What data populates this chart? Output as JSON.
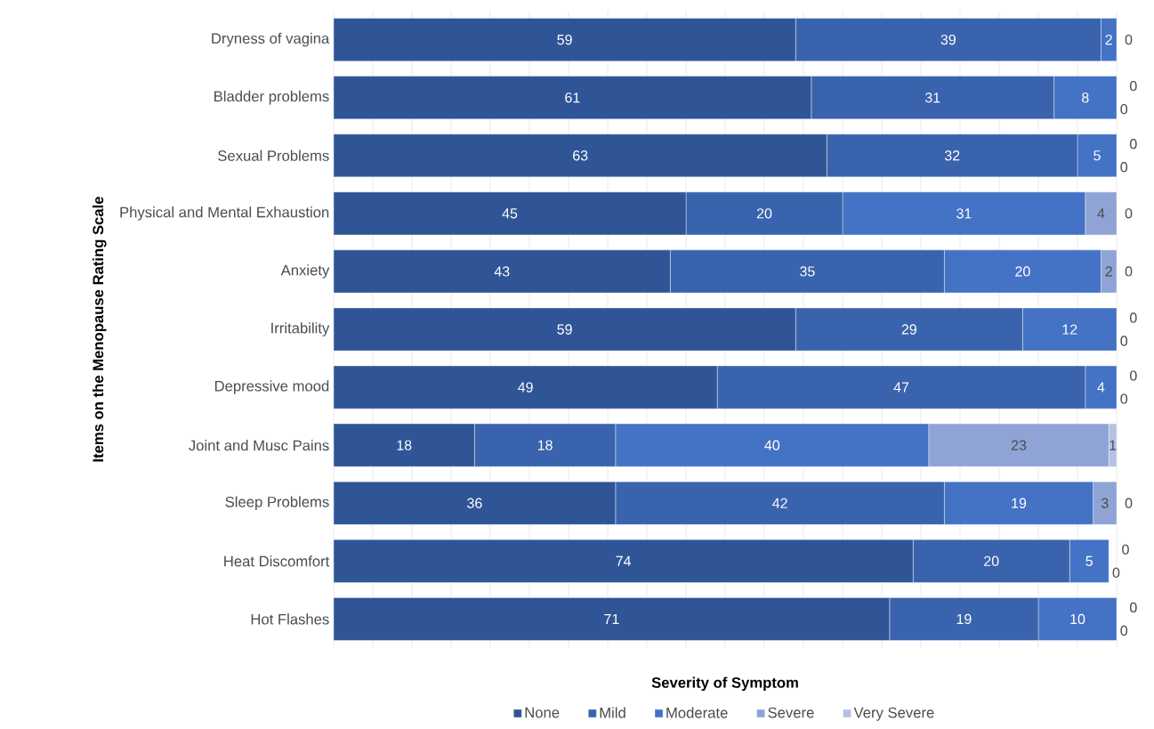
{
  "chart_data": {
    "type": "bar",
    "orientation": "horizontal",
    "stacked": true,
    "xlabel": "Severity of Symptom",
    "ylabel": "Items on the Menopause Rating Scale",
    "categories": [
      "Dryness of vagina",
      "Bladder problems",
      "Sexual Problems",
      "Physical and Mental Exhaustion",
      "Anxiety",
      "Irritability",
      "Depressive mood",
      "Joint and Musc Pains",
      "Sleep Problems",
      "Heat Discomfort",
      "Hot Flashes"
    ],
    "series": [
      {
        "name": "None",
        "color": "#2f5597",
        "values": [
          59,
          61,
          63,
          45,
          43,
          59,
          49,
          18,
          36,
          74,
          71
        ],
        "value_labels": [
          "59",
          "61",
          "63",
          "45",
          "43",
          "59",
          "49",
          "18",
          "36",
          "74",
          "71"
        ]
      },
      {
        "name": "Mild",
        "color": "#3a63ad",
        "values": [
          39,
          31,
          32,
          20,
          35,
          29,
          47,
          18,
          42,
          20,
          19
        ],
        "value_labels": [
          "39",
          "31",
          "32",
          "20",
          "35",
          "29",
          "47",
          "18",
          "42",
          "20",
          "19"
        ]
      },
      {
        "name": "Moderate",
        "color": "#4472c4",
        "values": [
          2,
          8,
          5,
          31,
          20,
          12,
          4,
          40,
          19,
          5,
          10
        ],
        "value_labels": [
          "2",
          "8",
          "5",
          "31",
          "20",
          "12",
          "4",
          "40",
          "19",
          "5",
          "10"
        ]
      },
      {
        "name": "Severe",
        "color": "#8fa3d5",
        "values": [
          0,
          0,
          0,
          4,
          2,
          0,
          0,
          23,
          3,
          0,
          0
        ],
        "value_labels": [
          null,
          "0",
          "0",
          "4",
          "2",
          "0",
          "0",
          "23",
          "3",
          "0",
          "0"
        ]
      },
      {
        "name": "Very Severe",
        "color": "#b4c1e4",
        "values": [
          0,
          0,
          0,
          0,
          0,
          0,
          0,
          1,
          0,
          0,
          0
        ],
        "value_labels": [
          "0",
          "0",
          "0",
          "0",
          "0",
          "0",
          "0",
          "1",
          "0",
          "0",
          "0"
        ]
      }
    ],
    "grid": "x",
    "legend": "bottom"
  }
}
